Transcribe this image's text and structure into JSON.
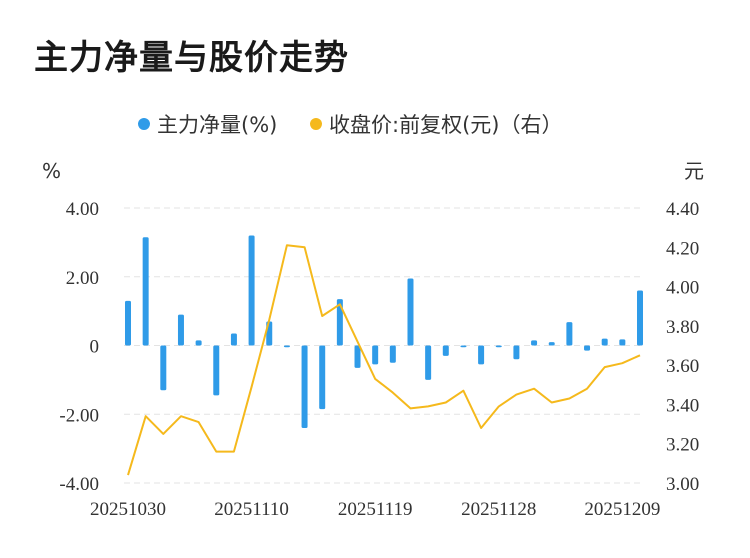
{
  "title": "主力净量与股价走势",
  "colors": {
    "bar": "#2f9be8",
    "line": "#f5b91c",
    "grid": "#e3e3e3",
    "text": "#333333"
  },
  "legend": [
    {
      "label": "主力净量(%)",
      "color": "#2f9be8",
      "marker": "dot"
    },
    {
      "label": "收盘价:前复权(元)（右）",
      "color": "#f5b91c",
      "marker": "dot"
    }
  ],
  "chart_data": {
    "type": "bar+line",
    "title": "主力净量与股价走势",
    "y_left_unit": "%",
    "y_right_unit": "元",
    "y_left_ticks": [
      "4.00",
      "2.00",
      "0",
      "-2.00",
      "-4.00"
    ],
    "y_left_range": [
      -4,
      4
    ],
    "y_right_ticks": [
      "4.40",
      "4.20",
      "4.00",
      "3.80",
      "3.60",
      "3.40",
      "3.20",
      "3.00"
    ],
    "y_right_range": [
      3.0,
      4.4
    ],
    "x_tick_labels": [
      "20251030",
      "20251110",
      "20251119",
      "20251128",
      "20251209"
    ],
    "x_tick_indices": [
      0,
      7,
      14,
      21,
      28
    ],
    "grid": "horizontal dashed",
    "legend_position": "top",
    "series": [
      {
        "name": "主力净量(%)",
        "type": "bar",
        "axis": "left",
        "values": [
          1.3,
          3.15,
          -1.3,
          0.9,
          0.15,
          -1.45,
          0.35,
          3.2,
          0.7,
          -0.05,
          -2.4,
          -1.85,
          1.35,
          -0.65,
          -0.55,
          -0.5,
          1.95,
          -1.0,
          -0.3,
          -0.05,
          -0.55,
          -0.05,
          -0.4,
          0.15,
          0.1,
          0.68,
          -0.15,
          0.2,
          0.18,
          1.6
        ]
      },
      {
        "name": "收盘价:前复权(元)（右）",
        "type": "line",
        "axis": "right",
        "values": [
          3.04,
          3.34,
          3.25,
          3.34,
          3.31,
          3.16,
          3.16,
          3.49,
          3.83,
          4.21,
          4.2,
          3.85,
          3.91,
          3.72,
          3.53,
          3.46,
          3.38,
          3.39,
          3.41,
          3.47,
          3.28,
          3.39,
          3.45,
          3.48,
          3.41,
          3.43,
          3.48,
          3.59,
          3.61,
          3.65
        ]
      }
    ]
  }
}
